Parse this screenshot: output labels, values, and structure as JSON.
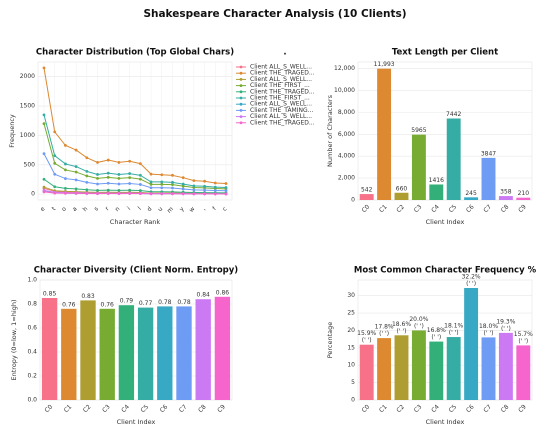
{
  "title": "Shakespeare Character Analysis (10 Clients)",
  "chart_data": [
    {
      "type": "line",
      "title": "Character Distribution (Top Global Chars)",
      "xlabel": "Character Rank",
      "ylabel": "Frequency",
      "categories": [
        "e",
        "t",
        "o",
        "a",
        "h",
        "s",
        "r",
        "n",
        "i",
        "l",
        "d",
        "u",
        "m",
        "y",
        "w",
        ",",
        "f",
        "c"
      ],
      "ylim": [
        -100,
        2250
      ],
      "yticks": [
        0,
        500,
        1000,
        1500,
        2000
      ],
      "grid": true,
      "legend_title": ".",
      "legend": "outside right",
      "series": [
        {
          "name": "Client ALL_S_WELL...",
          "color": "#f77189",
          "values": [
            97,
            48,
            37,
            34,
            28,
            24,
            26,
            24,
            25,
            23,
            15,
            15,
            15,
            12,
            10,
            10,
            9,
            8
          ]
        },
        {
          "name": "Client THE_TRAGED...",
          "color": "#dc8932",
          "values": [
            2150,
            1060,
            830,
            750,
            620,
            540,
            580,
            540,
            560,
            520,
            340,
            330,
            320,
            280,
            230,
            220,
            190,
            180
          ]
        },
        {
          "name": "Client ALL_S_WELL...",
          "color": "#ae9d31",
          "values": [
            118,
            58,
            46,
            42,
            34,
            30,
            32,
            30,
            31,
            28,
            18,
            18,
            18,
            15,
            13,
            12,
            11,
            10
          ]
        },
        {
          "name": "Client THE_FIRST_...",
          "color": "#77ab31",
          "values": [
            1200,
            525,
            412,
            376,
            310,
            268,
            286,
            268,
            280,
            256,
            167,
            167,
            161,
            137,
            113,
            107,
            95,
            89
          ]
        },
        {
          "name": "Client THE_TRAGED...",
          "color": "#33b07a",
          "values": [
            253,
            125,
            98,
            89,
            74,
            64,
            68,
            64,
            67,
            61,
            40,
            40,
            38,
            33,
            27,
            25,
            23,
            21
          ]
        },
        {
          "name": "Client THE_FIRST_...",
          "color": "#36ada4",
          "values": [
            1350,
            655,
            514,
            469,
            387,
            335,
            357,
            335,
            350,
            320,
            208,
            208,
            201,
            171,
            141,
            134,
            119,
            112
          ]
        },
        {
          "name": "Client ALL_S_WELL...",
          "color": "#38a9c5",
          "values": [
            44,
            22,
            17,
            15,
            13,
            11,
            12,
            11,
            12,
            11,
            7,
            7,
            7,
            6,
            5,
            4,
            4,
            4
          ]
        },
        {
          "name": "Client THE_TAMING...",
          "color": "#6e9bf4",
          "values": [
            689,
            339,
            265,
            242,
            200,
            173,
            185,
            173,
            181,
            165,
            108,
            108,
            104,
            88,
            73,
            69,
            62,
            58
          ]
        },
        {
          "name": "Client ALL_S_WELL...",
          "color": "#cc7af4",
          "values": [
            64,
            32,
            25,
            23,
            19,
            16,
            17,
            16,
            17,
            15,
            10,
            10,
            10,
            8,
            7,
            6,
            6,
            5
          ]
        },
        {
          "name": "Client THE_TRAGED...",
          "color": "#f565cc",
          "values": [
            38,
            18,
            14,
            13,
            11,
            9,
            10,
            9,
            10,
            9,
            6,
            6,
            6,
            5,
            4,
            4,
            3,
            3
          ]
        }
      ]
    },
    {
      "type": "bar",
      "title": "Text Length per Client",
      "xlabel": "Client Index",
      "ylabel": "Number of Characters",
      "categories": [
        "C0",
        "C1",
        "C2",
        "C3",
        "C4",
        "C5",
        "C6",
        "C7",
        "C8",
        "C9"
      ],
      "colors": [
        "#f77189",
        "#dc8932",
        "#ae9d31",
        "#77ab31",
        "#33b07a",
        "#36ada4",
        "#38a9c5",
        "#6e9bf4",
        "#cc7af4",
        "#f565cc"
      ],
      "values": [
        542,
        11993,
        660,
        5965,
        1416,
        7442,
        245,
        3847,
        358,
        210
      ],
      "value_labels": [
        "542",
        "11,993",
        "660",
        "5965",
        "1416",
        "7442",
        "245",
        "3847",
        "358",
        "210"
      ],
      "ylim": [
        0,
        12600
      ],
      "yticks": [
        0,
        {
          "value": 2000,
          "label": "2,000"
        },
        {
          "value": 4000,
          "label": "4,000"
        },
        {
          "value": 6000,
          "label": "6,000"
        },
        {
          "value": 8000,
          "label": "8,000"
        },
        {
          "value": 10000,
          "label": "10,000"
        },
        {
          "value": 12000,
          "label": "12,000"
        }
      ],
      "grid": true
    },
    {
      "type": "bar",
      "title": "Character Diversity (Client Norm. Entropy)",
      "xlabel": "Client Index",
      "ylabel": "Entropy (0=low, 1=high)",
      "categories": [
        "C0",
        "C1",
        "C2",
        "C3",
        "C4",
        "C5",
        "C6",
        "C7",
        "C8",
        "C9"
      ],
      "colors": [
        "#f77189",
        "#dc8932",
        "#ae9d31",
        "#77ab31",
        "#33b07a",
        "#36ada4",
        "#38a9c5",
        "#6e9bf4",
        "#cc7af4",
        "#f565cc"
      ],
      "values": [
        0.85,
        0.76,
        0.83,
        0.76,
        0.79,
        0.77,
        0.78,
        0.78,
        0.84,
        0.86
      ],
      "ylim": [
        0,
        1.0
      ],
      "yticks": [
        {
          "value": 0,
          "label": "0.0"
        },
        0.2,
        0.4,
        0.6,
        0.8,
        {
          "value": 1,
          "label": "1.0"
        }
      ],
      "grid": true
    },
    {
      "type": "bar",
      "title": "Most Common Character Frequency %",
      "xlabel": "Client Index",
      "ylabel": "Percentage",
      "categories": [
        "C0",
        "C1",
        "C2",
        "C3",
        "C4",
        "C5",
        "C6",
        "C7",
        "C8",
        "C9"
      ],
      "colors": [
        "#f77189",
        "#dc8932",
        "#ae9d31",
        "#77ab31",
        "#33b07a",
        "#36ada4",
        "#38a9c5",
        "#6e9bf4",
        "#cc7af4",
        "#f565cc"
      ],
      "values": [
        15.9,
        17.8,
        18.6,
        20.0,
        16.8,
        18.1,
        32.2,
        18.0,
        19.3,
        15.7
      ],
      "value_labels": [
        "15.9%",
        "17.8%",
        "18.6%",
        "20.0%",
        "16.8%",
        "18.1%",
        "32.2%",
        "18.0%",
        "19.3%",
        "15.7%"
      ],
      "char_labels": [
        "(' ')",
        "(' ')",
        "(' ')",
        "(' ')",
        "(' ')",
        "(' ')",
        "(' ')",
        "(' ')",
        "(' ')",
        "(' ')"
      ],
      "ylim": [
        0,
        34.5
      ],
      "yticks": [
        0,
        5,
        10,
        15,
        20,
        25,
        30
      ],
      "grid": true
    }
  ]
}
